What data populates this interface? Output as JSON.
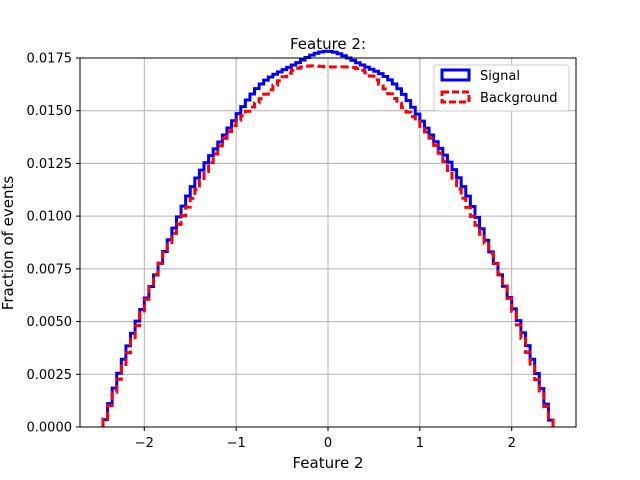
{
  "chart_data": {
    "type": "line",
    "title": "Feature 2:",
    "xlabel": "Feature 2",
    "ylabel": "Fraction of events",
    "xlim": [
      -2.7,
      2.7
    ],
    "ylim": [
      0,
      0.0175
    ],
    "xticks": [
      -2,
      -1,
      0,
      1,
      2
    ],
    "xtick_labels": [
      "−2",
      "−1",
      "0",
      "1",
      "2"
    ],
    "yticks": [
      0,
      0.0025,
      0.005,
      0.0075,
      0.01,
      0.0125,
      0.015,
      0.0175
    ],
    "ytick_labels": [
      "0.0000",
      "0.0025",
      "0.0050",
      "0.0075",
      "0.0100",
      "0.0125",
      "0.0150",
      "0.0175"
    ],
    "grid": true,
    "legend_position": "top-right",
    "histogram": {
      "range": [
        -2.45,
        2.45
      ],
      "bins": 98
    },
    "series": [
      {
        "name": "Signal",
        "color": "#0000ff",
        "style": "solid",
        "peak": 0.0177
      },
      {
        "name": "Background",
        "color": "#ff0000",
        "style": "dashed",
        "peak": 0.0172
      }
    ]
  }
}
